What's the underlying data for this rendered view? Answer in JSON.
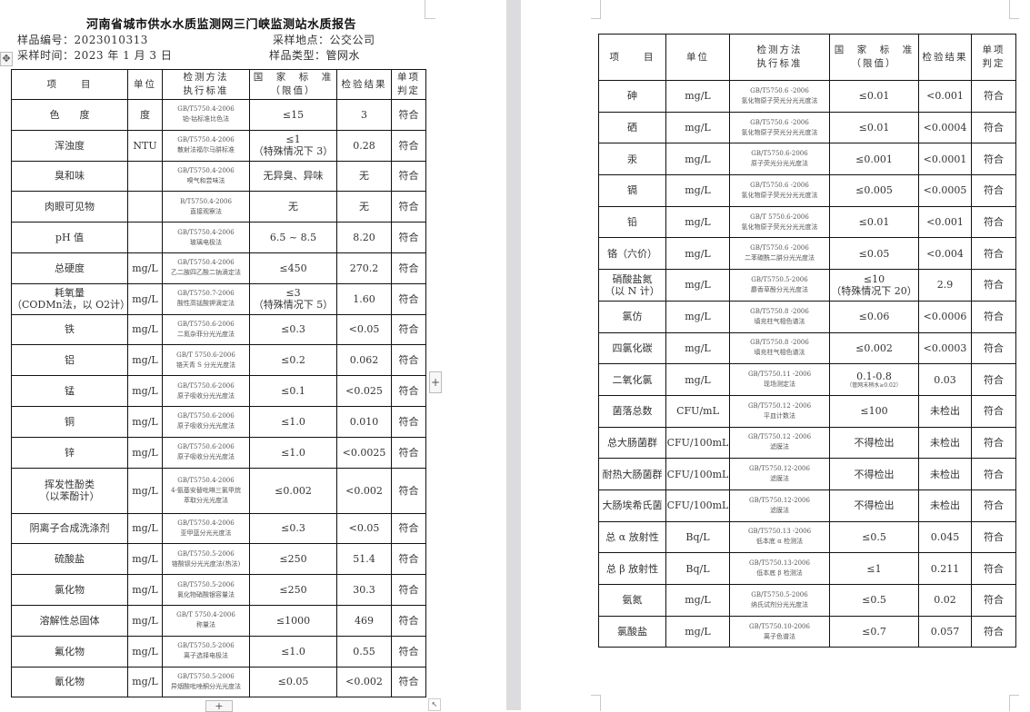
{
  "report": {
    "title": "河南省城市供水水质监测网三门峡监测站水质报告",
    "sample_no": "样品编号：2023010313",
    "sample_site": "采样地点：公交公司",
    "sample_time": "采样时间：2023 年 1 月 3 日",
    "sample_type": "样品类型：管网水"
  },
  "headers": [
    "项　　目",
    "单位",
    "检测方法\n执行标准",
    "国　家　标　准\n（限值）",
    "检验结果",
    "单项\n判定"
  ],
  "left_rows": [
    {
      "item": "色　　度",
      "unit": "度",
      "code": "GB/T5750.4-2006",
      "method": "铂-钴标准比色法",
      "std": "≤15",
      "result": "3",
      "verdict": "符合"
    },
    {
      "item": "浑浊度",
      "unit": "NTU",
      "code": "GB/T5750.4-2006",
      "method": "散射法福尔马肼标准",
      "std": "≤1\n（特殊情况下 3）",
      "result": "0.28",
      "verdict": "符合"
    },
    {
      "item": "臭和味",
      "unit": "",
      "code": "GB/T5750.4-2006",
      "method": "嗅气和尝味法",
      "std": "无异臭、异味",
      "result": "无",
      "verdict": "符合"
    },
    {
      "item": "肉眼可见物",
      "unit": "",
      "code": "B/T5750.4-2006",
      "method": "直接观察法",
      "std": "无",
      "result": "无",
      "verdict": "符合"
    },
    {
      "item": "pH 值",
      "unit": "",
      "code": "GB/T5750.4-2006",
      "method": "玻璃电极法",
      "std": "6.5 ~ 8.5",
      "result": "8.20",
      "verdict": "符合"
    },
    {
      "item": "总硬度",
      "unit": "mg/L",
      "code": "GB/T5750.4-2006",
      "method": "乙二胺四乙酸二钠滴定法",
      "std": "≤450",
      "result": "270.2",
      "verdict": "符合"
    },
    {
      "item": "耗氧量\n（CODMn法，以 O2计）",
      "unit": "mg/L",
      "code": "GB/T5750.7-2006",
      "method": "酸性高锰酸钾滴定法",
      "std": "≤3\n（特殊情况下 5）",
      "result": "1.60",
      "verdict": "符合"
    },
    {
      "item": "铁",
      "unit": "mg/L",
      "code": "GB/T5750.6-2006",
      "method": "二氮杂菲分光光度法",
      "std": "≤0.3",
      "result": "<0.05",
      "verdict": "符合"
    },
    {
      "item": "铝",
      "unit": "mg/L",
      "code": "GB/T 5750.6-2006",
      "method": "铬天青 S 分光光度法",
      "std": "≤0.2",
      "result": "0.062",
      "verdict": "符合"
    },
    {
      "item": "锰",
      "unit": "mg/L",
      "code": "GB/T5750.6-2006",
      "method": "原子吸收分光光度法",
      "std": "≤0.1",
      "result": "<0.025",
      "verdict": "符合"
    },
    {
      "item": "铜",
      "unit": "mg/L",
      "code": "GB/T5750.6-2006",
      "method": "原子吸收分光光度法",
      "std": "≤1.0",
      "result": "0.010",
      "verdict": "符合"
    },
    {
      "item": "锌",
      "unit": "mg/L",
      "code": "GB/T5750.6-2006",
      "method": "原子吸收分光光度法",
      "std": "≤1.0",
      "result": "<0.0025",
      "verdict": "符合"
    },
    {
      "item": "挥发性酚类\n（以苯酚计）",
      "unit": "mg/L",
      "code": "GB/T5750.4-2006",
      "method": "4-氨基安替吡啉三氯甲烷\n萃取分光光度法",
      "std": "≤0.002",
      "result": "<0.002",
      "verdict": "符合"
    },
    {
      "item": "阴离子合成洗涤剂",
      "unit": "mg/L",
      "code": "GB/T5750.4-2006",
      "method": "亚甲蓝分光光度法",
      "std": "≤0.3",
      "result": "<0.05",
      "verdict": "符合"
    },
    {
      "item": "硫酸盐",
      "unit": "mg/L",
      "code": "GB/T5750.5-2006",
      "method": "铬酸钡分光光度法(热法)",
      "std": "≤250",
      "result": "51.4",
      "verdict": "符合"
    },
    {
      "item": "氯化物",
      "unit": "mg/L",
      "code": "GB/T5750.5-2006",
      "method": "氯化物硝酸银容量法",
      "std": "≤250",
      "result": "30.3",
      "verdict": "符合"
    },
    {
      "item": "溶解性总固体",
      "unit": "mg/L",
      "code": "GB/T 5750.4-2006",
      "method": "称量法",
      "std": "≤1000",
      "result": "469",
      "verdict": "符合"
    },
    {
      "item": "氟化物",
      "unit": "mg/L",
      "code": "GB/T5750.5-2006",
      "method": "离子选择电极法",
      "std": "≤1.0",
      "result": "0.55",
      "verdict": "符合"
    },
    {
      "item": "氰化物",
      "unit": "mg/L",
      "code": "GB/T5750.5-2006",
      "method": "异烟酸吡唑酮分光光度法",
      "std": "≤0.05",
      "result": "<0.002",
      "verdict": "符合"
    }
  ],
  "right_rows": [
    {
      "item": "砷",
      "unit": "mg/L",
      "code": "GB/T5750.6 -2006",
      "method": "氢化物原子荧光分光光度法",
      "std": "≤0.01",
      "result": "<0.001",
      "verdict": "符合"
    },
    {
      "item": "硒",
      "unit": "mg/L",
      "code": "GB/T5750.6 -2006",
      "method": "氢化物原子荧光分光光度法",
      "std": "≤0.01",
      "result": "<0.0004",
      "verdict": "符合"
    },
    {
      "item": "汞",
      "unit": "mg/L",
      "code": "GB/T5750.6-2006",
      "method": "原子荧光分光光度法",
      "std": "≤0.001",
      "result": "<0.0001",
      "verdict": "符合"
    },
    {
      "item": "镉",
      "unit": "mg/L",
      "code": "GB/T5750.6 -2006",
      "method": "氢化物原子荧光分光光度法",
      "std": "≤0.005",
      "result": "<0.0005",
      "verdict": "符合"
    },
    {
      "item": "铅",
      "unit": "mg/L",
      "code": "GB/T 5750.6-2006",
      "method": "氢化物原子荧光分光光度法",
      "std": "≤0.01",
      "result": "<0.001",
      "verdict": "符合"
    },
    {
      "item": "铬（六价）",
      "unit": "mg/L",
      "code": "GB/T5750.6 -2006",
      "method": "二苯碳酰二肼分光光度法",
      "std": "≤0.05",
      "result": "<0.004",
      "verdict": "符合"
    },
    {
      "item": "硝酸盐氮\n（以 N 计）",
      "unit": "mg/L",
      "code": "GB/T5750.5-2006",
      "method": "麝香草酚分光光度法",
      "std": "≤10\n（特殊情况下 20）",
      "result": "2.9",
      "verdict": "符合"
    },
    {
      "item": "氯仿",
      "unit": "mg/L",
      "code": "GB/T5750.8 -2006",
      "method": "填充柱气相色谱法",
      "std": "≤0.06",
      "result": "<0.0006",
      "verdict": "符合"
    },
    {
      "item": "四氯化碳",
      "unit": "mg/L",
      "code": "GB/T5750.8 -2006",
      "method": "填充柱气相色谱法",
      "std": "≤0.002",
      "result": "<0.0003",
      "verdict": "符合"
    },
    {
      "item": "二氧化氯",
      "unit": "mg/L",
      "code": "GB/T5750.11 -2006",
      "method": "现场测定法",
      "std": "0.1-0.8",
      "std_note": "（管网末梢水≥0.02）",
      "result": "0.03",
      "verdict": "符合"
    },
    {
      "item": "菌落总数",
      "unit": "CFU/mL",
      "code": "GB/T5750.12 -2006",
      "method": "平皿计数法",
      "std": "≤100",
      "result": "未检出",
      "verdict": "符合"
    },
    {
      "item": "总大肠菌群",
      "unit": "CFU/100mL",
      "code": "GB/T5750.12 -2006",
      "method": "滤膜法",
      "std": "不得检出",
      "result": "未检出",
      "verdict": "符合"
    },
    {
      "item": "耐热大肠菌群",
      "unit": "CFU/100mL",
      "code": "GB/T5750.12-2006",
      "method": "滤膜法",
      "std": "不得检出",
      "result": "未检出",
      "verdict": "符合"
    },
    {
      "item": "大肠埃希氏菌",
      "unit": "CFU/100mL",
      "code": "GB/T5750.12-2006",
      "method": "滤膜法",
      "std": "不得检出",
      "result": "未检出",
      "verdict": "符合"
    },
    {
      "item": "总 α 放射性",
      "unit": "Bq/L",
      "code": "GB/T5750.13 -2006",
      "method": "低本底 α 检测法",
      "std": "≤0.5",
      "result": "0.045",
      "verdict": "符合"
    },
    {
      "item": "总 β 放射性",
      "unit": "Bq/L",
      "code": "GB/T5750.13-2006",
      "method": "低本底 β 检测法",
      "std": "≤1",
      "result": "0.211",
      "verdict": "符合"
    },
    {
      "item": "氨氮",
      "unit": "mg/L",
      "code": "GB/T5750.5-2006",
      "method": "纳氏试剂分光光度法",
      "std": "≤0.5",
      "result": "0.02",
      "verdict": "符合"
    },
    {
      "item": "氯酸盐",
      "unit": "mg/L",
      "code": "GB/T5750.10-2006",
      "method": "离子色谱法",
      "std": "≤0.7",
      "result": "0.057",
      "verdict": "符合"
    }
  ],
  "ui": {
    "move_handle_icon": "move-icon",
    "add_row_icon": "plus-icon",
    "add_col_icon": "plus-icon",
    "plus": "+",
    "move": "✥"
  }
}
